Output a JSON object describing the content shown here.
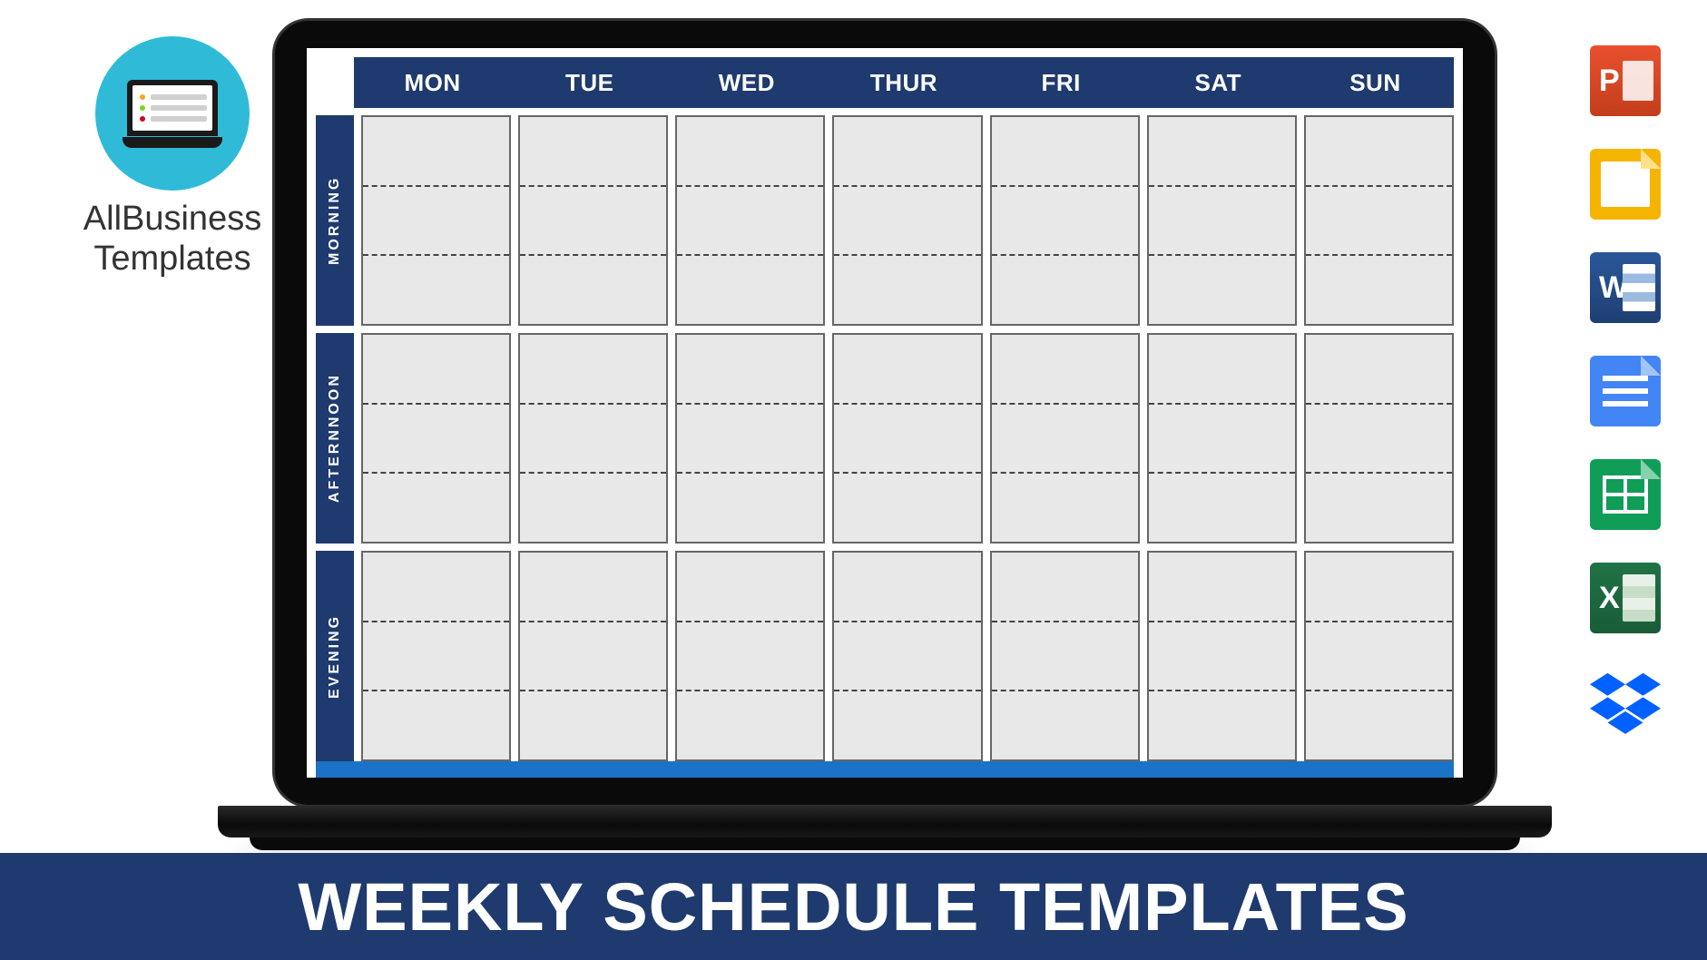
{
  "brand": {
    "line1": "AllBusiness",
    "line2": "Templates"
  },
  "banner": {
    "text": "WEEKLY SCHEDULE TEMPLATES"
  },
  "colors": {
    "header_bg": "#1e3a6e",
    "banner_bg": "#1e3a6e",
    "cell_bg": "#e8e8e8",
    "cell_border": "#666666",
    "dash_border": "#444444",
    "footer_strip": "#1a73c7",
    "logo_circle": "#2fbbd8",
    "page_bg": "#ffffff"
  },
  "schedule": {
    "days": [
      "MON",
      "TUE",
      "WED",
      "THUR",
      "FRI",
      "SAT",
      "SUN"
    ],
    "periods": [
      "MORNING",
      "AFTERNNOON",
      "EVENING"
    ],
    "subrows_per_period": 3,
    "header_font_size": 26,
    "period_font_size": 16
  },
  "appIcons": [
    {
      "name": "powerpoint-icon",
      "letter": "P",
      "class": "icon-ppt"
    },
    {
      "name": "google-slides-icon",
      "letter": "",
      "class": "icon-slides"
    },
    {
      "name": "word-icon",
      "letter": "W",
      "class": "icon-word"
    },
    {
      "name": "google-docs-icon",
      "letter": "",
      "class": "icon-docs"
    },
    {
      "name": "google-sheets-icon",
      "letter": "",
      "class": "icon-sheets"
    },
    {
      "name": "excel-icon",
      "letter": "X",
      "class": "icon-excel"
    },
    {
      "name": "dropbox-icon",
      "letter": "",
      "class": "icon-dropbox"
    }
  ]
}
